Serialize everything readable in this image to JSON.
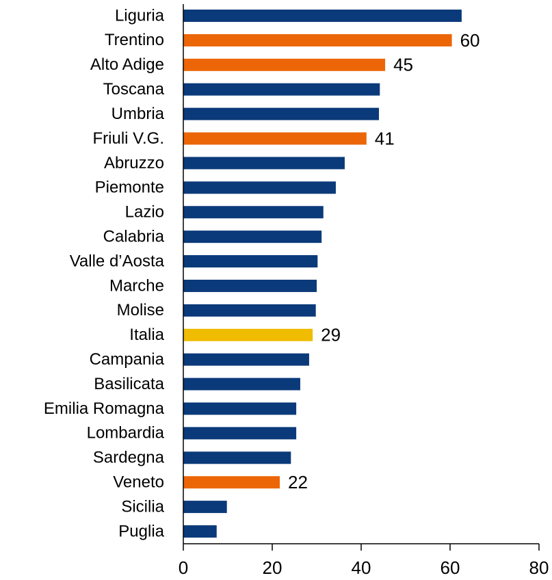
{
  "chart_data": {
    "type": "barh",
    "categories": [
      "Liguria",
      "Trentino",
      "Alto Adige",
      "Toscana",
      "Umbria",
      "Friuli V.G.",
      "Abruzzo",
      "Piemonte",
      "Lazio",
      "Calabria",
      "Valle d’Aosta",
      "Marche",
      "Molise",
      "Italia",
      "Campania",
      "Basilicata",
      "Emilia Romagna",
      "Lombardia",
      "Sardegna",
      "Veneto",
      "Sicilia",
      "Puglia"
    ],
    "values": [
      62.6,
      60.4,
      45.4,
      44.2,
      44.0,
      41.2,
      36.3,
      34.3,
      31.5,
      31.1,
      30.2,
      30.0,
      29.8,
      29.1,
      28.3,
      26.3,
      25.4,
      25.4,
      24.2,
      21.7,
      9.8,
      7.5
    ],
    "value_labels": [
      null,
      "60",
      "45",
      null,
      null,
      "41",
      null,
      null,
      null,
      null,
      null,
      null,
      null,
      "29",
      null,
      null,
      null,
      null,
      null,
      "22",
      null,
      null
    ],
    "colors": [
      "#0b3a7a",
      "#ec6608",
      "#ec6608",
      "#0b3a7a",
      "#0b3a7a",
      "#ec6608",
      "#0b3a7a",
      "#0b3a7a",
      "#0b3a7a",
      "#0b3a7a",
      "#0b3a7a",
      "#0b3a7a",
      "#0b3a7a",
      "#f0bc00",
      "#0b3a7a",
      "#0b3a7a",
      "#0b3a7a",
      "#0b3a7a",
      "#0b3a7a",
      "#ec6608",
      "#0b3a7a",
      "#0b3a7a"
    ],
    "xlim": [
      0,
      80
    ],
    "xticks": [
      0,
      20,
      40,
      60,
      80
    ],
    "grid": false
  }
}
